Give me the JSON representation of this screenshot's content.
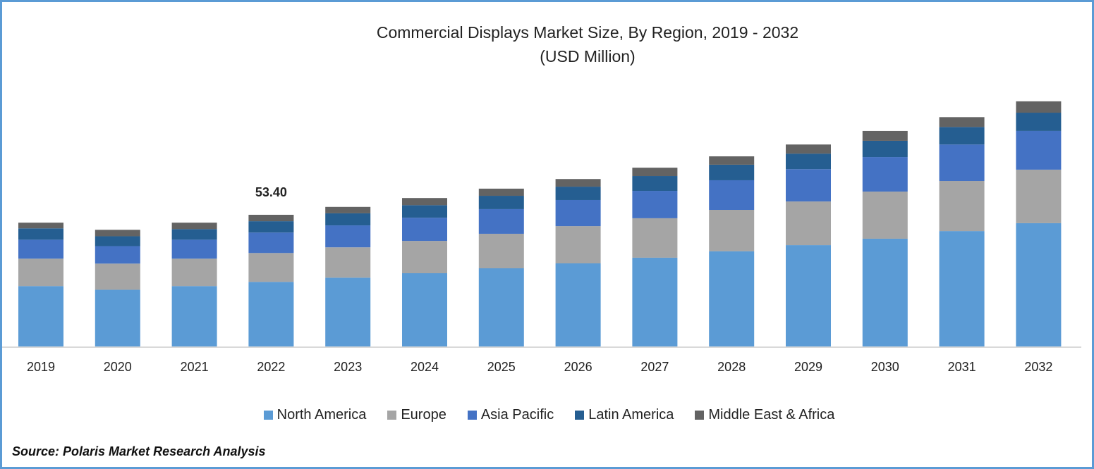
{
  "chart_data": {
    "type": "stacked-bar",
    "title": "Commercial Displays Market Size, By Region, 2019 - 2032",
    "subtitle": "(USD Million)",
    "categories": [
      "2019",
      "2020",
      "2021",
      "2022",
      "2023",
      "2024",
      "2025",
      "2026",
      "2027",
      "2028",
      "2029",
      "2030",
      "2031",
      "2032"
    ],
    "series": [
      {
        "name": "North America",
        "color": "#5b9bd5",
        "values": [
          24.5,
          23.0,
          24.5,
          26.2,
          27.9,
          29.7,
          31.7,
          33.7,
          36.0,
          38.6,
          41.1,
          43.7,
          46.8,
          50.0
        ]
      },
      {
        "name": "Europe",
        "color": "#a5a5a5",
        "values": [
          11.1,
          10.6,
          11.1,
          11.7,
          12.3,
          13.1,
          14.0,
          15.1,
          16.0,
          16.8,
          17.7,
          19.1,
          20.3,
          21.7
        ]
      },
      {
        "name": "Asia Pacific",
        "color": "#4472c4",
        "values": [
          7.7,
          7.1,
          7.7,
          8.3,
          8.9,
          9.4,
          10.0,
          10.6,
          11.1,
          12.0,
          13.1,
          14.0,
          14.8,
          15.7
        ]
      },
      {
        "name": "Latin America",
        "color": "#255e91",
        "values": [
          4.6,
          4.0,
          4.3,
          4.6,
          4.9,
          5.1,
          5.4,
          5.4,
          6.0,
          6.3,
          6.3,
          6.6,
          7.1,
          7.4
        ]
      },
      {
        "name": "Middle East & Africa",
        "color": "#636363",
        "values": [
          2.3,
          2.6,
          2.6,
          2.6,
          2.6,
          2.9,
          2.9,
          3.1,
          3.4,
          3.4,
          3.7,
          4.0,
          4.0,
          4.6
        ]
      }
    ],
    "annotations": [
      {
        "category": "2022",
        "label": "53.40"
      }
    ],
    "ylim": [
      0,
      100
    ],
    "grid": false,
    "legend_position": "bottom",
    "y_axis_shown": false
  },
  "source": "Source: Polaris Market Research Analysis",
  "frame_color": "#5b9bd5"
}
